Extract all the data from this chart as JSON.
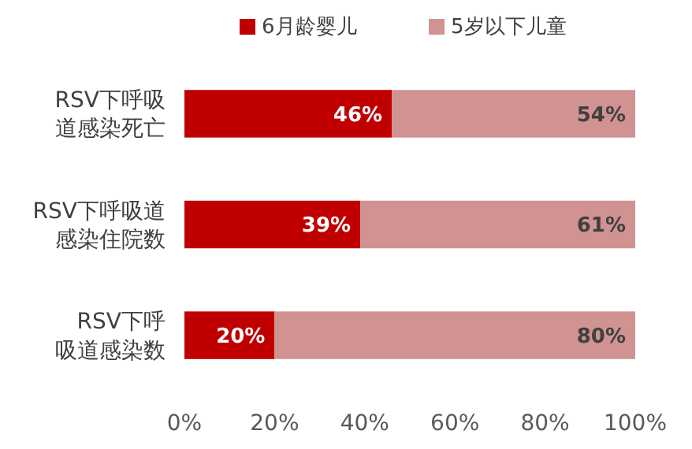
{
  "chart_data": {
    "type": "bar",
    "orientation": "horizontal",
    "stacked": true,
    "categories": [
      "RSV下呼吸道感染死亡",
      "RSV下呼吸道感染住院数",
      "RSV下呼吸道感染数"
    ],
    "series": [
      {
        "name": "6月龄婴儿",
        "color": "#c00000",
        "values": [
          46,
          39,
          20
        ],
        "value_labels": [
          "46%",
          "39%",
          "20%"
        ]
      },
      {
        "name": "5岁以下儿童",
        "color": "#d09392",
        "values": [
          54,
          61,
          80
        ],
        "value_labels": [
          "54%",
          "61%",
          "80%"
        ]
      }
    ],
    "xlim": [
      0,
      100
    ],
    "xticks": [
      {
        "value": 0,
        "label": "0%"
      },
      {
        "value": 20,
        "label": "20%"
      },
      {
        "value": 40,
        "label": "40%"
      },
      {
        "value": 60,
        "label": "60%"
      },
      {
        "value": 80,
        "label": "80%"
      },
      {
        "value": 100,
        "label": "100%"
      }
    ],
    "legend": "top",
    "grid": false
  }
}
